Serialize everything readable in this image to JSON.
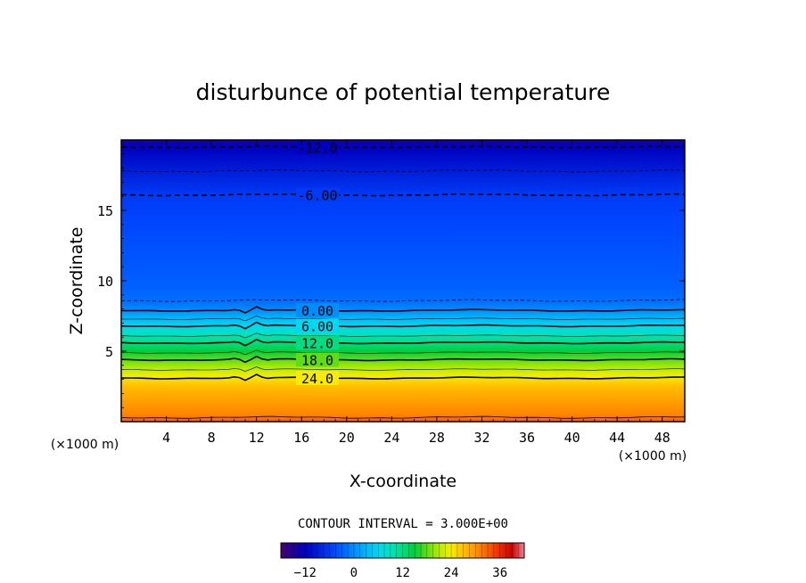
{
  "chart_data": {
    "type": "contour",
    "title": "disturbunce of potential temperature",
    "xlabel": "X-coordinate",
    "ylabel": "Z-coordinate",
    "x_unit": "(×1000 m)",
    "y_unit": "(×1000 m)",
    "xlim": [
      0,
      50
    ],
    "ylim": [
      0,
      20
    ],
    "x_ticks": [
      4,
      8,
      12,
      16,
      20,
      24,
      28,
      32,
      36,
      40,
      44,
      48
    ],
    "y_ticks": [
      5,
      10,
      15
    ],
    "contour_interval": "CONTOUR INTERVAL = 3.000E+00",
    "colorbar": {
      "min": -18,
      "max": 42,
      "ticks": [
        -12,
        0,
        12,
        24,
        36
      ]
    },
    "labeled_contours": [
      {
        "label": "-12.0",
        "z": 19.5,
        "style": "dashed"
      },
      {
        "label": "-6.00",
        "z": 16.1,
        "style": "dashed"
      },
      {
        "label": "0.00",
        "z": 7.9,
        "style": "solid"
      },
      {
        "label": "6.00",
        "z": 6.8,
        "style": "solid"
      },
      {
        "label": "12.0",
        "z": 5.6,
        "style": "solid"
      },
      {
        "label": "18.0",
        "z": 4.4,
        "style": "solid"
      },
      {
        "label": "24.0",
        "z": 3.1,
        "style": "solid"
      }
    ],
    "profile": [
      {
        "z": 0.0,
        "value": 33
      },
      {
        "z": 0.5,
        "value": 31
      },
      {
        "z": 1.5,
        "value": 29
      },
      {
        "z": 2.5,
        "value": 27
      },
      {
        "z": 3.2,
        "value": 24
      },
      {
        "z": 3.8,
        "value": 21
      },
      {
        "z": 4.4,
        "value": 18
      },
      {
        "z": 5.0,
        "value": 15
      },
      {
        "z": 5.6,
        "value": 12
      },
      {
        "z": 6.2,
        "value": 9
      },
      {
        "z": 6.8,
        "value": 6
      },
      {
        "z": 7.4,
        "value": 3
      },
      {
        "z": 7.9,
        "value": 0
      },
      {
        "z": 8.5,
        "value": -2
      },
      {
        "z": 9.5,
        "value": -3
      },
      {
        "z": 12.0,
        "value": -4
      },
      {
        "z": 14.5,
        "value": -5
      },
      {
        "z": 16.1,
        "value": -6
      },
      {
        "z": 17.8,
        "value": -9
      },
      {
        "z": 19.5,
        "value": -12
      },
      {
        "z": 20.0,
        "value": -14
      }
    ]
  }
}
